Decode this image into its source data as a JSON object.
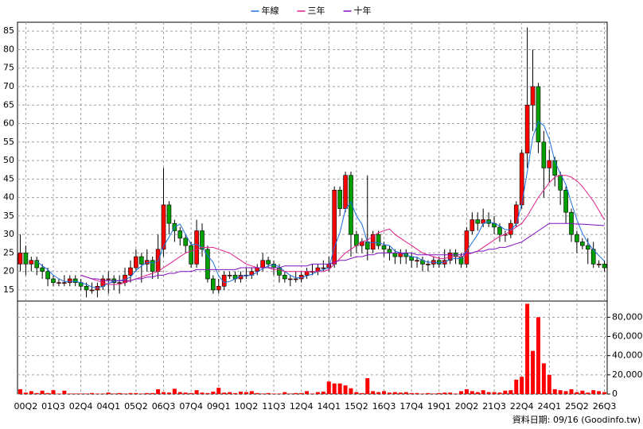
{
  "chart_data": {
    "type": "candlestick",
    "legend": "top",
    "grid": true,
    "source": "資料日期: 09/16  (Goodinfo.tw)",
    "categories": [
      null,
      "00Q2",
      null,
      null,
      null,
      null,
      "01Q3",
      null,
      null,
      null,
      null,
      "02Q4",
      null,
      null,
      null,
      null,
      "04Q1",
      null,
      null,
      null,
      null,
      "05Q2",
      null,
      null,
      null,
      null,
      "06Q3",
      null,
      null,
      null,
      null,
      "07Q4",
      null,
      null,
      null,
      null,
      "09Q1",
      null,
      null,
      null,
      null,
      "10Q2",
      null,
      null,
      null,
      null,
      "11Q3",
      null,
      null,
      null,
      null,
      "12Q4",
      null,
      null,
      null,
      null,
      "14Q1",
      null,
      null,
      null,
      null,
      "15Q2",
      null,
      null,
      null,
      null,
      "16Q3",
      null,
      null,
      null,
      null,
      "17Q4",
      null,
      null,
      null,
      null,
      "19Q1",
      null,
      null,
      null,
      null,
      "20Q2",
      null,
      null,
      null,
      null,
      "21Q3",
      null,
      null,
      null,
      null,
      "22Q4",
      null,
      null,
      null,
      null,
      "24Q1",
      null,
      null,
      null,
      null,
      "25Q2",
      null,
      null,
      null,
      null,
      "26Q3"
    ],
    "ohlc": [
      [
        22,
        30,
        20,
        25
      ],
      [
        25,
        27,
        19,
        22
      ],
      [
        22,
        24,
        20,
        23
      ],
      [
        23,
        24,
        19,
        21
      ],
      [
        21,
        22,
        18,
        20
      ],
      [
        20,
        21,
        16,
        18
      ],
      [
        18,
        19,
        16,
        17
      ],
      [
        17,
        18,
        16,
        17
      ],
      [
        17,
        19,
        16,
        17
      ],
      [
        17,
        19,
        16,
        18
      ],
      [
        18,
        19,
        16,
        17
      ],
      [
        17,
        18,
        15,
        16
      ],
      [
        16,
        17,
        13,
        15
      ],
      [
        15,
        17,
        14,
        15
      ],
      [
        15,
        17,
        13,
        16
      ],
      [
        16,
        19,
        15,
        18
      ],
      [
        18,
        20,
        14,
        18
      ],
      [
        18,
        19,
        15,
        17
      ],
      [
        17,
        19,
        14,
        17
      ],
      [
        17,
        21,
        16,
        19
      ],
      [
        19,
        23,
        17,
        21
      ],
      [
        21,
        26,
        20,
        24
      ],
      [
        24,
        25,
        17,
        22
      ],
      [
        22,
        26,
        20,
        23
      ],
      [
        23,
        24,
        18,
        20
      ],
      [
        20,
        30,
        18,
        26
      ],
      [
        26,
        48,
        24,
        38
      ],
      [
        38,
        39,
        30,
        33
      ],
      [
        33,
        34,
        28,
        31
      ],
      [
        31,
        32,
        27,
        29
      ],
      [
        29,
        30,
        25,
        27
      ],
      [
        27,
        28,
        21,
        22
      ],
      [
        22,
        34,
        21,
        31
      ],
      [
        31,
        33,
        24,
        26
      ],
      [
        26,
        27,
        17,
        18
      ],
      [
        18,
        19,
        14,
        15
      ],
      [
        15,
        18,
        14,
        16
      ],
      [
        16,
        20,
        15,
        19
      ],
      [
        19,
        20,
        18,
        19
      ],
      [
        19,
        20,
        17,
        18
      ],
      [
        18,
        20,
        17,
        19
      ],
      [
        19,
        21,
        18,
        19
      ],
      [
        19,
        21,
        18,
        20
      ],
      [
        20,
        22,
        19,
        21
      ],
      [
        21,
        25,
        20,
        23
      ],
      [
        23,
        24,
        21,
        22
      ],
      [
        22,
        23,
        19,
        21
      ],
      [
        21,
        22,
        17,
        19
      ],
      [
        19,
        20,
        17,
        18
      ],
      [
        18,
        19,
        16,
        18
      ],
      [
        18,
        20,
        17,
        18
      ],
      [
        18,
        20,
        17,
        19
      ],
      [
        19,
        21,
        18,
        20
      ],
      [
        20,
        22,
        19,
        20
      ],
      [
        20,
        22,
        19,
        21
      ],
      [
        21,
        23,
        20,
        21
      ],
      [
        21,
        24,
        20,
        22
      ],
      [
        22,
        43,
        21,
        42
      ],
      [
        42,
        43,
        35,
        37
      ],
      [
        37,
        47,
        36,
        46
      ],
      [
        46,
        47,
        24,
        30
      ],
      [
        30,
        31,
        25,
        27
      ],
      [
        27,
        29,
        25,
        28
      ],
      [
        28,
        46,
        23,
        26
      ],
      [
        26,
        31,
        25,
        30
      ],
      [
        30,
        31,
        26,
        27
      ],
      [
        27,
        28,
        24,
        26
      ],
      [
        26,
        27,
        23,
        25
      ],
      [
        25,
        26,
        22,
        24
      ],
      [
        24,
        26,
        22,
        25
      ],
      [
        25,
        26,
        22,
        24
      ],
      [
        24,
        25,
        21,
        23
      ],
      [
        23,
        24,
        21,
        23
      ],
      [
        23,
        24,
        20,
        22
      ],
      [
        22,
        23,
        20,
        22
      ],
      [
        22,
        24,
        21,
        23
      ],
      [
        23,
        24,
        21,
        22
      ],
      [
        22,
        26,
        21,
        23
      ],
      [
        23,
        26,
        22,
        25
      ],
      [
        25,
        26,
        22,
        24
      ],
      [
        24,
        25,
        21,
        22
      ],
      [
        22,
        32,
        21,
        31
      ],
      [
        31,
        36,
        30,
        34
      ],
      [
        34,
        36,
        31,
        33
      ],
      [
        33,
        37,
        32,
        34
      ],
      [
        34,
        36,
        32,
        33
      ],
      [
        33,
        35,
        30,
        32
      ],
      [
        32,
        33,
        28,
        30
      ],
      [
        30,
        31,
        28,
        30
      ],
      [
        30,
        34,
        29,
        33
      ],
      [
        33,
        39,
        32,
        38
      ],
      [
        38,
        53,
        37,
        52
      ],
      [
        52,
        86,
        48,
        65
      ],
      [
        65,
        80,
        58,
        70
      ],
      [
        70,
        71,
        52,
        55
      ],
      [
        55,
        58,
        40,
        48
      ],
      [
        48,
        53,
        44,
        50
      ],
      [
        50,
        51,
        43,
        46
      ],
      [
        46,
        47,
        38,
        42
      ],
      [
        42,
        43,
        33,
        36
      ],
      [
        36,
        37,
        28,
        30
      ],
      [
        30,
        31,
        25,
        28
      ],
      [
        28,
        29,
        26,
        27
      ],
      [
        27,
        29,
        22,
        26
      ],
      [
        26,
        28,
        21,
        22
      ],
      [
        22,
        23,
        21,
        22
      ],
      [
        22,
        23,
        20,
        21
      ]
    ],
    "up_color": "#ff0000",
    "down_color": "#00a000",
    "series": [
      {
        "name": "年線",
        "color": "#1a6fe0",
        "values": [
          null,
          null,
          null,
          22.8,
          21.5,
          20.5,
          19,
          18,
          17.3,
          17.3,
          17.3,
          17,
          16.5,
          15.8,
          15.5,
          16,
          16.8,
          17.3,
          17.5,
          17.8,
          18.5,
          20.3,
          21.5,
          22.5,
          22.3,
          22.8,
          26.8,
          29.3,
          32,
          32.8,
          30,
          27.3,
          27.3,
          26.5,
          24.3,
          22.5,
          18.8,
          17,
          17.3,
          18,
          18.8,
          18.8,
          19,
          19.8,
          20.8,
          21.5,
          21.8,
          21.3,
          20,
          19,
          18.3,
          18.3,
          18.8,
          19.3,
          20,
          20.5,
          21,
          26.5,
          30.5,
          36.8,
          38.8,
          35,
          32.8,
          27.8,
          27.8,
          27.8,
          27.3,
          27,
          25.5,
          25,
          24.5,
          24,
          23.8,
          23,
          22.5,
          22.5,
          22.3,
          22.5,
          23.3,
          23.5,
          23.5,
          25.5,
          27.8,
          30,
          33,
          33.5,
          33,
          32.3,
          31.3,
          31.3,
          32.8,
          38.3,
          47,
          56.3,
          60.5,
          59.5,
          55.8,
          49.8,
          46.5,
          43.5,
          38.5,
          34,
          30.3,
          27.8,
          25.8,
          24.3,
          22.8
        ]
      },
      {
        "name": "三年",
        "color": "#e0208a",
        "values": [
          null,
          null,
          null,
          null,
          null,
          null,
          null,
          null,
          null,
          null,
          null,
          19,
          18.5,
          18,
          17.5,
          17,
          16.5,
          16.5,
          16.5,
          17,
          17.5,
          18,
          18.5,
          19,
          19.5,
          20,
          21,
          22,
          23,
          24,
          25,
          25.5,
          26,
          26.5,
          26.5,
          26.5,
          26,
          25.5,
          25,
          24,
          23,
          22,
          21.5,
          21,
          21,
          21,
          20.5,
          20.5,
          20,
          20,
          20,
          20,
          20,
          20,
          20,
          20,
          20.5,
          22,
          23.5,
          25,
          26,
          27,
          28,
          28.5,
          29.5,
          30.5,
          31,
          31.5,
          30,
          29,
          28,
          27,
          26,
          25,
          24.5,
          24,
          23.5,
          23.5,
          24,
          24,
          24,
          24.5,
          25,
          25.5,
          26.5,
          27.5,
          28.5,
          29.5,
          30,
          31,
          32,
          33,
          35,
          37.5,
          40,
          42,
          44,
          45.5,
          46,
          46,
          45.5,
          44.5,
          43,
          41,
          39,
          36.5,
          34
        ]
      },
      {
        "name": "十年",
        "color": "#8010c0",
        "values": [
          null,
          null,
          null,
          null,
          null,
          null,
          null,
          null,
          null,
          null,
          null,
          19,
          18.5,
          18,
          18,
          17.5,
          17.5,
          17.5,
          17.5,
          17.5,
          17.5,
          18,
          18,
          18.5,
          18.5,
          19,
          19,
          19.5,
          19.5,
          20,
          20,
          20,
          20.5,
          20.5,
          20.5,
          20.5,
          20.5,
          20.5,
          20.5,
          20.5,
          21,
          21,
          21,
          21,
          21,
          21,
          21,
          21,
          21.5,
          21.5,
          21.5,
          21.5,
          21.5,
          22,
          22,
          22,
          22,
          22.5,
          23,
          23,
          23.5,
          24,
          24,
          24.5,
          24.5,
          25,
          25,
          25,
          25,
          25,
          25,
          25,
          24.5,
          24.5,
          24.5,
          24.5,
          24.5,
          24.5,
          24.5,
          24.5,
          24.5,
          25,
          25,
          25.5,
          25.5,
          26,
          26,
          26.5,
          26.5,
          27,
          27.5,
          28,
          29,
          30,
          31,
          32,
          33,
          33,
          33,
          33,
          33,
          32.8,
          32.8,
          32.7,
          32.6,
          32.5,
          32.4
        ]
      }
    ],
    "ylim": [
      12.2,
      87.4
    ],
    "yticks": [
      15,
      20,
      25,
      30,
      35,
      40,
      45,
      50,
      55,
      60,
      65,
      70,
      75,
      80,
      85
    ],
    "volume": {
      "color": "#ff0000",
      "values": [
        5000,
        1500,
        3000,
        1000,
        3500,
        1000,
        4000,
        500,
        3500,
        500,
        500,
        500,
        500,
        1000,
        500,
        500,
        1500,
        500,
        1000,
        500,
        1000,
        1000,
        500,
        1000,
        1000,
        5000,
        2000,
        1500,
        5500,
        2000,
        1500,
        1000,
        4000,
        1500,
        1000,
        2500,
        6500,
        1500,
        2000,
        1000,
        2500,
        2000,
        3000,
        1000,
        500,
        1000,
        500,
        500,
        2000,
        500,
        1000,
        1000,
        3000,
        500,
        2000,
        2500,
        13000,
        11000,
        11000,
        9000,
        6000,
        2000,
        1000,
        16500,
        3000,
        2000,
        3000,
        1500,
        2000,
        1500,
        2000,
        1000,
        1000,
        500,
        1000,
        500,
        1000,
        1500,
        1500,
        500,
        3000,
        5000,
        3000,
        2000,
        4000,
        2000,
        2000,
        1500,
        3500,
        4000,
        15000,
        18000,
        94000,
        45000,
        80000,
        32000,
        20000,
        5000,
        4000,
        3000,
        5000,
        2000,
        3500,
        1500,
        4000,
        3000,
        2000
      ],
      "ylim": [
        0,
        96000
      ],
      "yticks": [
        0,
        {
          "value": 20000,
          "label": "20,000"
        },
        {
          "value": 40000,
          "label": "40,000"
        },
        {
          "value": 60000,
          "label": "60,000"
        },
        {
          "value": 80000,
          "label": "80,000"
        }
      ]
    }
  }
}
